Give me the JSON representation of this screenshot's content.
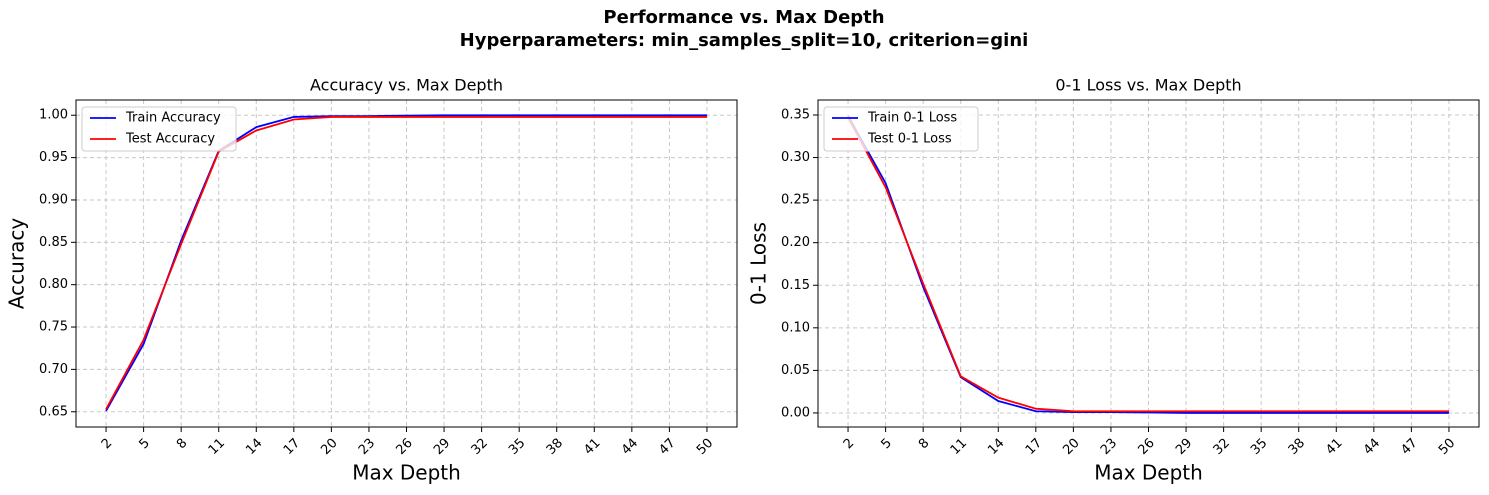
{
  "title": [
    "Performance vs. Max Depth",
    "Hyperparameters: min_samples_split=10, criterion=gini"
  ],
  "chart_data": [
    {
      "type": "line",
      "title": "Accuracy vs. Max Depth",
      "xlabel": "Max Depth",
      "ylabel": "Accuracy",
      "x": [
        2,
        5,
        8,
        11,
        14,
        17,
        20,
        23,
        26,
        29,
        32,
        35,
        38,
        41,
        44,
        47,
        50
      ],
      "series": [
        {
          "name": "Train Accuracy",
          "color": "#0000ff",
          "values": [
            0.651,
            0.73,
            0.852,
            0.958,
            0.986,
            0.998,
            0.999,
            0.999,
            0.9995,
            1.0,
            1.0,
            1.0,
            1.0,
            1.0,
            1.0,
            1.0,
            1.0
          ]
        },
        {
          "name": "Test Accuracy",
          "color": "#ff0000",
          "values": [
            0.653,
            0.735,
            0.848,
            0.957,
            0.982,
            0.995,
            0.998,
            0.998,
            0.998,
            0.998,
            0.998,
            0.998,
            0.998,
            0.998,
            0.998,
            0.998,
            0.998
          ]
        }
      ],
      "xlim": [
        -0.4,
        52.4
      ],
      "xticks": [
        2,
        5,
        8,
        11,
        14,
        17,
        20,
        23,
        26,
        29,
        32,
        35,
        38,
        41,
        44,
        47,
        50
      ],
      "ylim": [
        0.632,
        1.018
      ],
      "yticks": [
        0.65,
        {
          "value": 0.7,
          "label": "0.70"
        },
        0.75,
        {
          "value": 0.8,
          "label": "0.80"
        },
        0.85,
        {
          "value": 0.9,
          "label": "0.90"
        },
        0.95,
        {
          "value": 1.0,
          "label": "1.00"
        }
      ],
      "grid": true,
      "legend": "upper-left"
    },
    {
      "type": "line",
      "title": "0-1 Loss vs. Max Depth",
      "xlabel": "Max Depth",
      "ylabel": "0-1 Loss",
      "x": [
        2,
        5,
        8,
        11,
        14,
        17,
        20,
        23,
        26,
        29,
        32,
        35,
        38,
        41,
        44,
        47,
        50
      ],
      "series": [
        {
          "name": "Train 0-1 Loss",
          "color": "#0000ff",
          "values": [
            0.349,
            0.27,
            0.148,
            0.042,
            0.014,
            0.002,
            0.001,
            0.001,
            0.0005,
            0.0,
            0.0,
            0.0,
            0.0,
            0.0,
            0.0,
            0.0,
            0.0
          ]
        },
        {
          "name": "Test 0-1 Loss",
          "color": "#ff0000",
          "values": [
            0.347,
            0.265,
            0.152,
            0.043,
            0.018,
            0.005,
            0.002,
            0.002,
            0.002,
            0.002,
            0.002,
            0.002,
            0.002,
            0.002,
            0.002,
            0.002,
            0.002
          ]
        }
      ],
      "xlim": [
        -0.4,
        52.4
      ],
      "xticks": [
        2,
        5,
        8,
        11,
        14,
        17,
        20,
        23,
        26,
        29,
        32,
        35,
        38,
        41,
        44,
        47,
        50
      ],
      "ylim": [
        -0.0165,
        0.3676
      ],
      "yticks": [
        {
          "value": 0,
          "label": "0.00"
        },
        0.05,
        {
          "value": 0.1,
          "label": "0.10"
        },
        0.15,
        {
          "value": 0.2,
          "label": "0.20"
        },
        0.25,
        {
          "value": 0.3,
          "label": "0.30"
        },
        0.35
      ],
      "grid": true,
      "legend": "upper-left"
    }
  ]
}
